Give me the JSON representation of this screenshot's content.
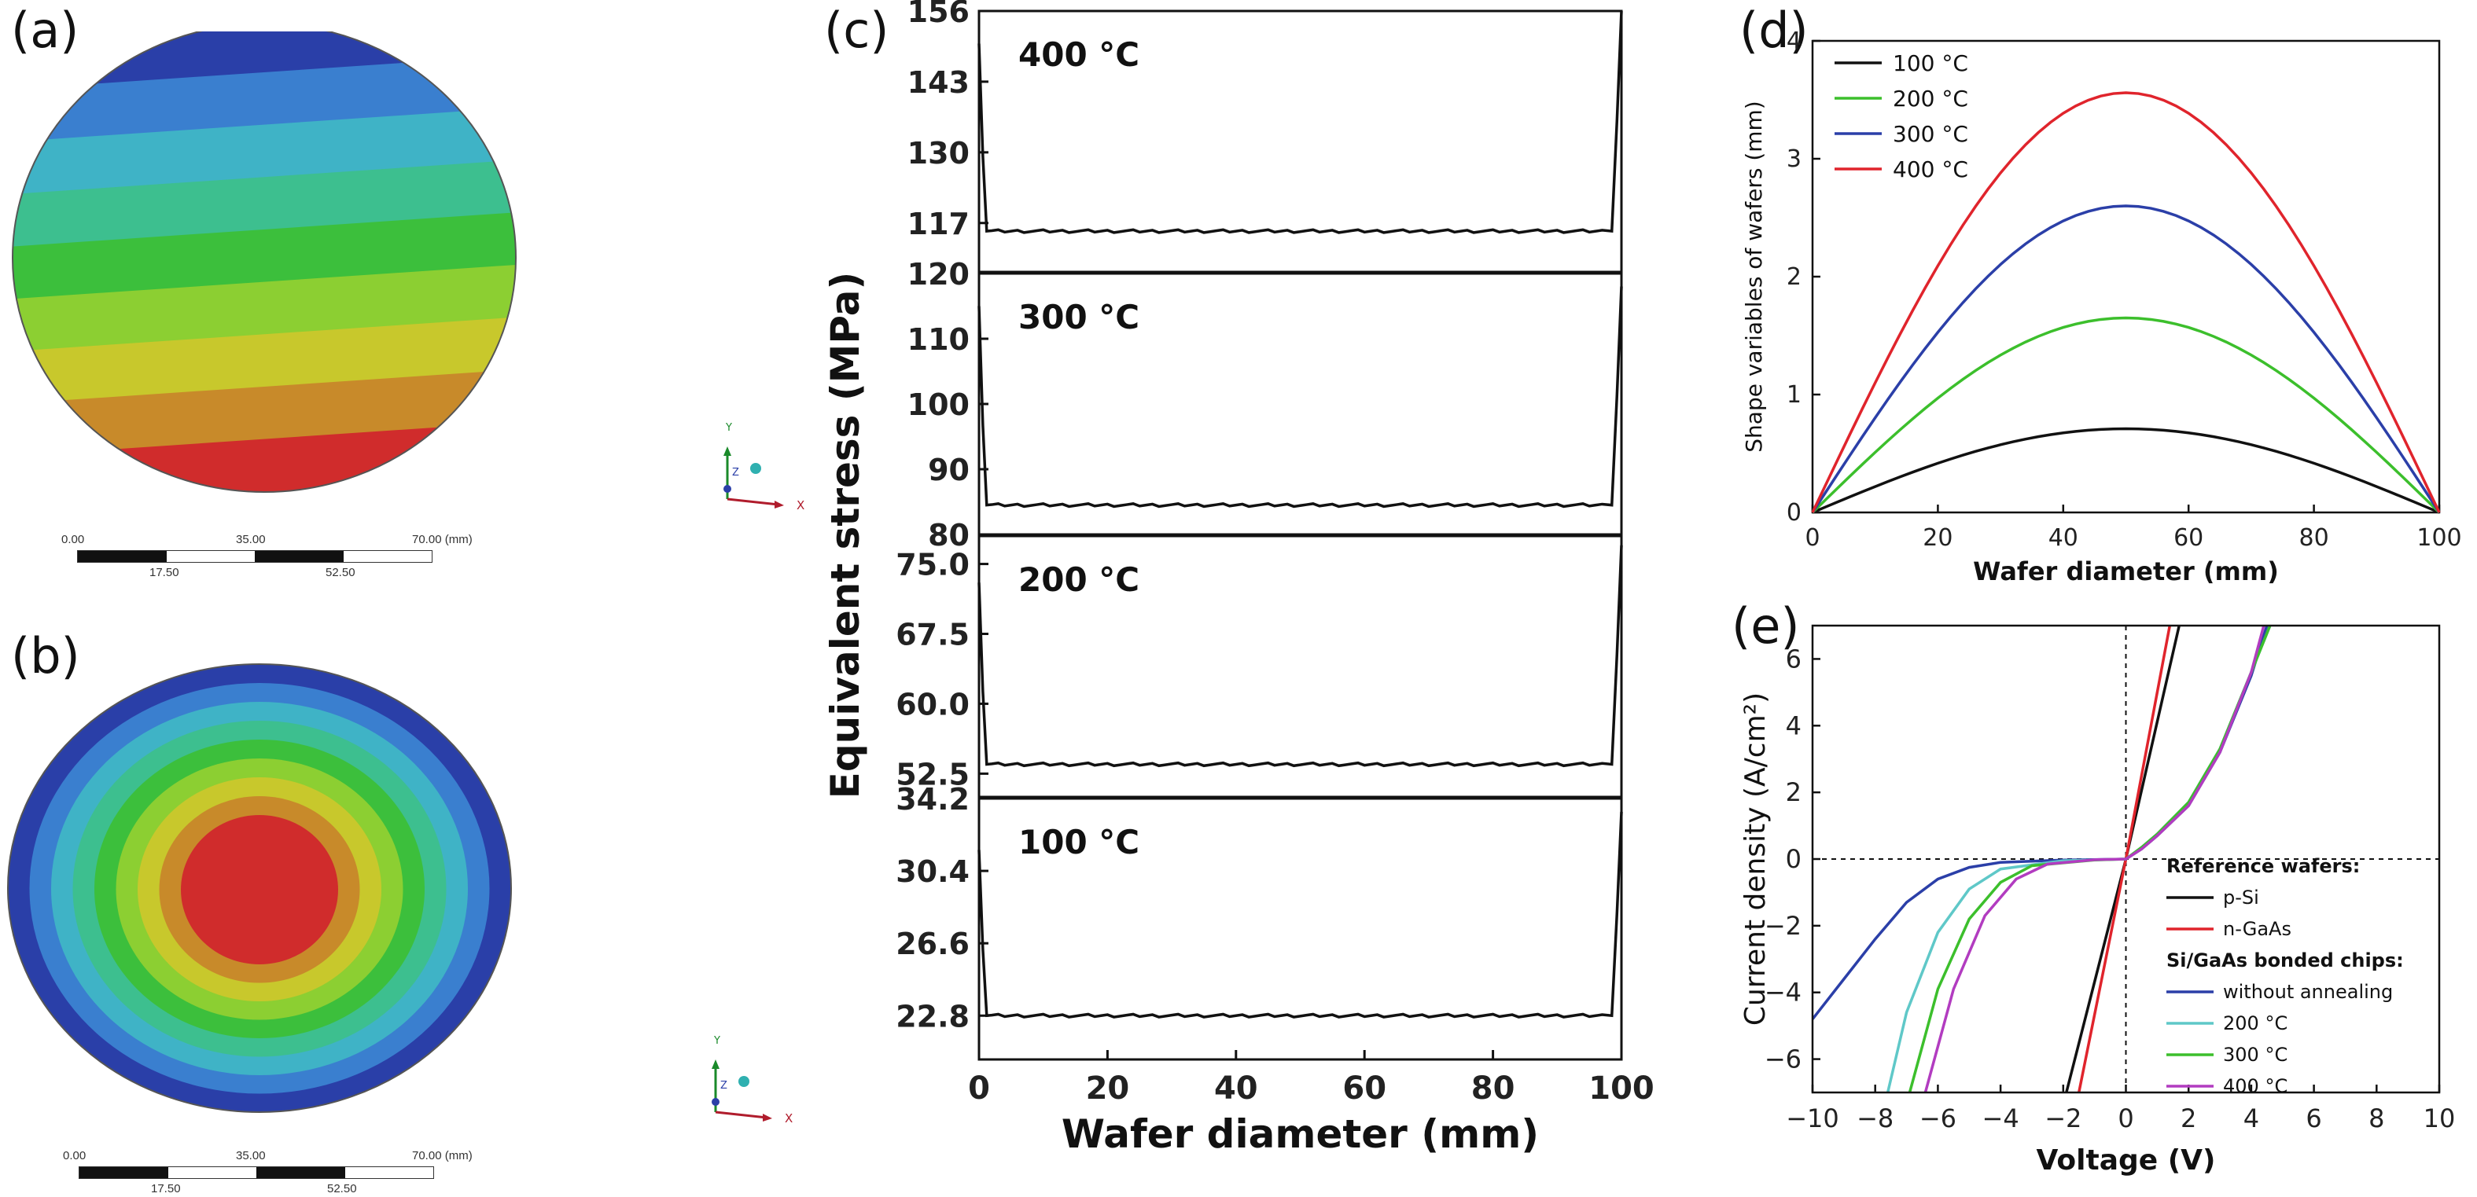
{
  "panels": {
    "a": {
      "label": "(a)",
      "scale_top": [
        "0.00",
        "35.00",
        "70.00 (mm)"
      ],
      "scale_bottom": [
        "17.50",
        "52.50"
      ]
    },
    "b": {
      "label": "(b)",
      "scale_top": [
        "0.00",
        "35.00",
        "70.00 (mm)"
      ],
      "scale_bottom": [
        "17.50",
        "52.50"
      ]
    },
    "c": {
      "label": "(c)"
    },
    "d": {
      "label": "(d)"
    },
    "e": {
      "label": "(e)"
    }
  },
  "triad": {
    "x": "X",
    "y": "Y",
    "z": "Z"
  },
  "colors": {
    "contour": [
      "#2a3fa8",
      "#3a7fcf",
      "#3fb3c6",
      "#3dbf8f",
      "#3cbf3c",
      "#8ccf32",
      "#c8c82c",
      "#c88a2a",
      "#d02c2c"
    ],
    "black": "#111111",
    "green": "#3cbf2c",
    "blue": "#2b3fa8",
    "red": "#e0242c",
    "cyan": "#5fc8c8",
    "purple": "#b23cc0"
  },
  "chart_data": [
    {
      "id": "c",
      "type": "line",
      "xlabel": "Wafer diameter (mm)",
      "ylabel": "Equivalent stress (MPa)",
      "xlim": [
        0,
        100
      ],
      "xticks": [
        "0",
        "20",
        "40",
        "60",
        "80",
        "100"
      ],
      "subplots": [
        {
          "label": "400 °C",
          "ylim": [
            108,
            156
          ],
          "yticks": [
            "117",
            "130",
            "143",
            "156"
          ],
          "baseline": 115.5,
          "edge_left": 150,
          "edge_right": 156
        },
        {
          "label": "300 °C",
          "ylim": [
            80,
            120
          ],
          "yticks": [
            "80",
            "90",
            "100",
            "110",
            "120"
          ],
          "baseline": 84.5,
          "edge_left": 115,
          "edge_right": 118
        },
        {
          "label": "200 °C",
          "ylim": [
            50,
            78
          ],
          "yticks": [
            "52.5",
            "60.0",
            "67.5",
            "75.0"
          ],
          "baseline": 53.5,
          "edge_left": 73,
          "edge_right": 77
        },
        {
          "label": "100 °C",
          "ylim": [
            20.5,
            34.2
          ],
          "yticks": [
            "22.8",
            "26.6",
            "30.4",
            "34.2"
          ],
          "baseline": 22.8,
          "edge_left": 31.5,
          "edge_right": 33.5
        }
      ]
    },
    {
      "id": "d",
      "type": "line",
      "xlabel": "Wafer diameter (mm)",
      "ylabel": "Shape variables of wafers (mm)",
      "xlim": [
        0,
        100
      ],
      "ylim": [
        0,
        4
      ],
      "xticks": [
        "0",
        "20",
        "40",
        "60",
        "80",
        "100"
      ],
      "yticks": [
        "0",
        "1",
        "2",
        "3",
        "4"
      ],
      "legend": "top-left",
      "series": [
        {
          "name": "100 °C",
          "peak": 0.71,
          "color": "#111111"
        },
        {
          "name": "200 °C",
          "peak": 1.65,
          "color": "#3cbf2c"
        },
        {
          "name": "300 °C",
          "peak": 2.6,
          "color": "#2b3fa8"
        },
        {
          "name": "400 °C",
          "peak": 3.56,
          "color": "#e0242c"
        }
      ]
    },
    {
      "id": "e",
      "type": "line",
      "xlabel": "Voltage (V)",
      "ylabel": "Current density (A/cm²)",
      "xlim": [
        -10,
        10
      ],
      "ylim": [
        -7,
        7
      ],
      "xticks": [
        "−10",
        "−8",
        "−6",
        "−4",
        "−2",
        "0",
        "2",
        "4",
        "6",
        "8",
        "10"
      ],
      "yticks": [
        "−6",
        "−4",
        "−2",
        "0",
        "2",
        "4",
        "6"
      ],
      "legend": "bottom-right",
      "legend_heading_1": "Reference wafers:",
      "legend_heading_2": "Si/GaAs bonded chips:",
      "series": [
        {
          "name": "p-Si",
          "color": "#111111",
          "points": [
            [
              -1.9,
              -7
            ],
            [
              0,
              0
            ],
            [
              1.7,
              7
            ]
          ]
        },
        {
          "name": "n-GaAs",
          "color": "#e0242c",
          "points": [
            [
              -1.5,
              -7
            ],
            [
              0,
              0
            ],
            [
              1.4,
              7
            ]
          ]
        },
        {
          "name": "without annealing",
          "color": "#2b3fa8",
          "points": [
            [
              -10,
              -4.8
            ],
            [
              -9,
              -3.6
            ],
            [
              -8,
              -2.4
            ],
            [
              -7,
              -1.3
            ],
            [
              -6,
              -0.6
            ],
            [
              -5,
              -0.25
            ],
            [
              -4,
              -0.1
            ],
            [
              -2,
              -0.03
            ],
            [
              0,
              0
            ],
            [
              0.5,
              0.3
            ],
            [
              1,
              0.7
            ],
            [
              2,
              1.6
            ],
            [
              3,
              3.2
            ],
            [
              4,
              5.5
            ],
            [
              4.5,
              7
            ]
          ]
        },
        {
          "name": "200 °C",
          "color": "#5fc8c8",
          "points": [
            [
              -7.6,
              -7
            ],
            [
              -7,
              -4.6
            ],
            [
              -6,
              -2.2
            ],
            [
              -5,
              -0.9
            ],
            [
              -4,
              -0.3
            ],
            [
              -2,
              -0.05
            ],
            [
              0,
              0
            ],
            [
              0.5,
              0.35
            ],
            [
              1,
              0.75
            ],
            [
              2,
              1.7
            ],
            [
              3,
              3.3
            ],
            [
              4,
              5.6
            ],
            [
              4.6,
              7
            ]
          ]
        },
        {
          "name": "300 °C",
          "color": "#3cbf2c",
          "points": [
            [
              -6.9,
              -7
            ],
            [
              -6,
              -3.9
            ],
            [
              -5,
              -1.8
            ],
            [
              -4,
              -0.7
            ],
            [
              -3,
              -0.2
            ],
            [
              -1,
              -0.03
            ],
            [
              0,
              0
            ],
            [
              0.5,
              0.35
            ],
            [
              1,
              0.75
            ],
            [
              2,
              1.7
            ],
            [
              3,
              3.3
            ],
            [
              4,
              5.6
            ],
            [
              4.6,
              7
            ]
          ]
        },
        {
          "name": "400 °C",
          "color": "#b23cc0",
          "points": [
            [
              -6.4,
              -7
            ],
            [
              -5.5,
              -3.9
            ],
            [
              -4.5,
              -1.7
            ],
            [
              -3.5,
              -0.6
            ],
            [
              -2.5,
              -0.15
            ],
            [
              -1,
              -0.02
            ],
            [
              0,
              0
            ],
            [
              0.5,
              0.3
            ],
            [
              1,
              0.7
            ],
            [
              2,
              1.6
            ],
            [
              3,
              3.2
            ],
            [
              4,
              5.6
            ],
            [
              4.4,
              7
            ]
          ]
        }
      ]
    }
  ]
}
